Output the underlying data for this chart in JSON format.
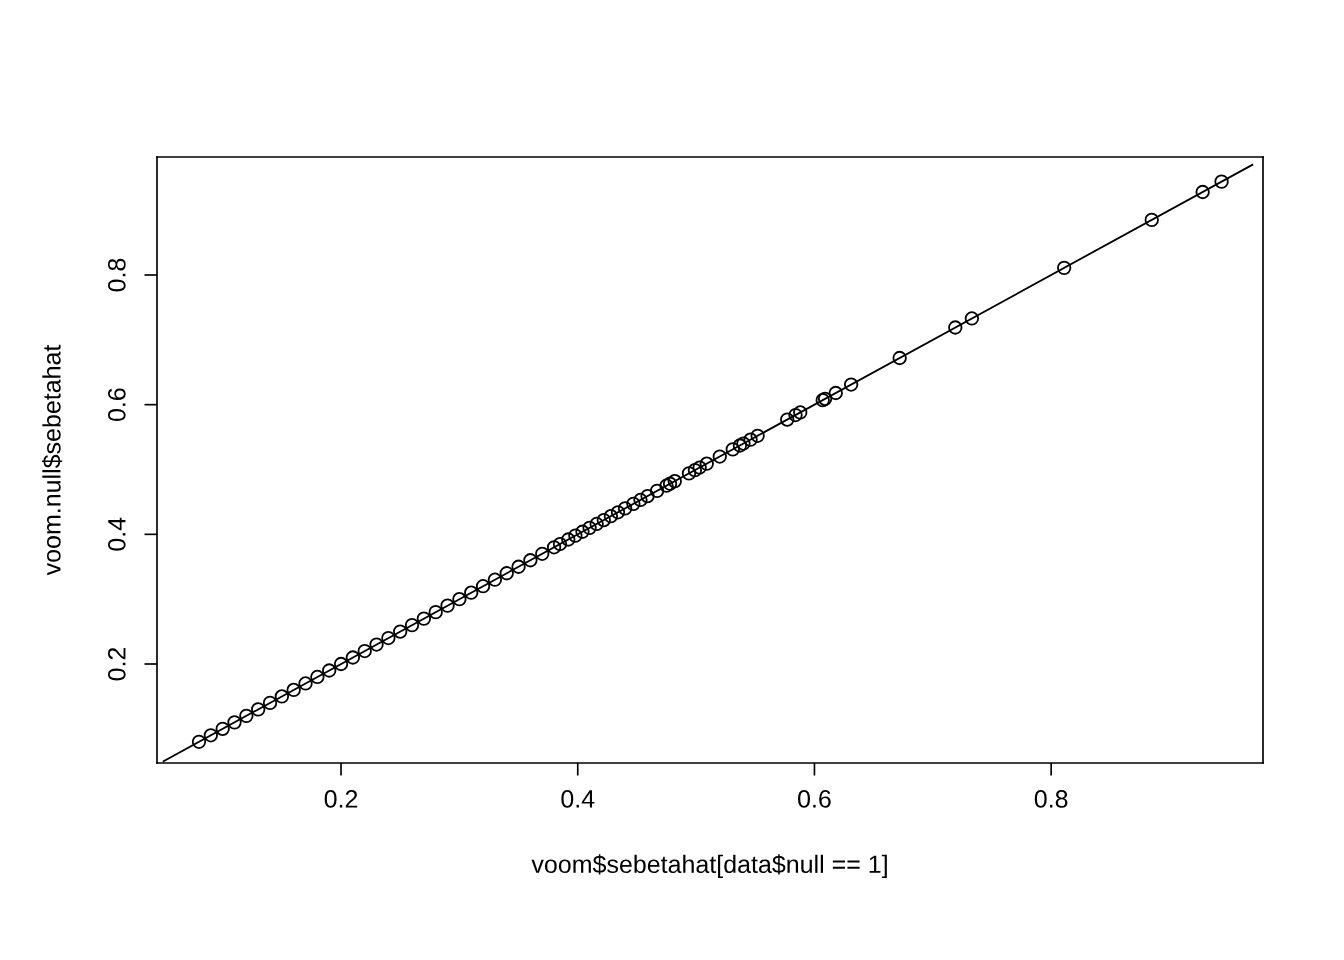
{
  "chart_data": {
    "type": "scatter",
    "xlabel": "voom$sebetahat[data$null == 1]",
    "ylabel": "voom.null$sebetahat",
    "xlim": [
      0.0445,
      0.979
    ],
    "ylim": [
      0.0473,
      0.982
    ],
    "xticks": [
      0.2,
      0.4,
      0.6,
      0.8
    ],
    "yticks": [
      0.2,
      0.4,
      0.6,
      0.8
    ],
    "grid": false,
    "series": [
      {
        "marker": "circle",
        "color": "#000000",
        "x": [
          0.08,
          0.09,
          0.1,
          0.11,
          0.12,
          0.13,
          0.14,
          0.15,
          0.16,
          0.17,
          0.18,
          0.19,
          0.2,
          0.21,
          0.22,
          0.23,
          0.24,
          0.25,
          0.26,
          0.27,
          0.28,
          0.29,
          0.3,
          0.31,
          0.32,
          0.33,
          0.34,
          0.35,
          0.36,
          0.37,
          0.38,
          0.385,
          0.392,
          0.398,
          0.404,
          0.41,
          0.416,
          0.422,
          0.428,
          0.434,
          0.44,
          0.447,
          0.453,
          0.459,
          0.467,
          0.475,
          0.478,
          0.482,
          0.494,
          0.499,
          0.503,
          0.509,
          0.52,
          0.531,
          0.537,
          0.54,
          0.546,
          0.552,
          0.577,
          0.584,
          0.588,
          0.607,
          0.609,
          0.618,
          0.631,
          0.672,
          0.719,
          0.733,
          0.811,
          0.885,
          0.928,
          0.944
        ],
        "values": [
          0.08,
          0.09,
          0.1,
          0.11,
          0.12,
          0.13,
          0.14,
          0.15,
          0.16,
          0.17,
          0.18,
          0.19,
          0.2,
          0.21,
          0.22,
          0.23,
          0.24,
          0.25,
          0.26,
          0.27,
          0.28,
          0.29,
          0.3,
          0.31,
          0.32,
          0.33,
          0.34,
          0.35,
          0.36,
          0.37,
          0.38,
          0.385,
          0.392,
          0.398,
          0.404,
          0.41,
          0.416,
          0.422,
          0.428,
          0.434,
          0.44,
          0.447,
          0.453,
          0.459,
          0.467,
          0.475,
          0.478,
          0.482,
          0.494,
          0.499,
          0.503,
          0.509,
          0.52,
          0.531,
          0.537,
          0.54,
          0.546,
          0.552,
          0.577,
          0.584,
          0.588,
          0.607,
          0.609,
          0.618,
          0.631,
          0.672,
          0.719,
          0.733,
          0.811,
          0.885,
          0.928,
          0.944
        ]
      },
      {
        "type": "line",
        "color": "#000000",
        "line_style": "solid",
        "x": [
          0.05,
          0.97
        ],
        "values": [
          0.05,
          0.97
        ]
      }
    ]
  }
}
